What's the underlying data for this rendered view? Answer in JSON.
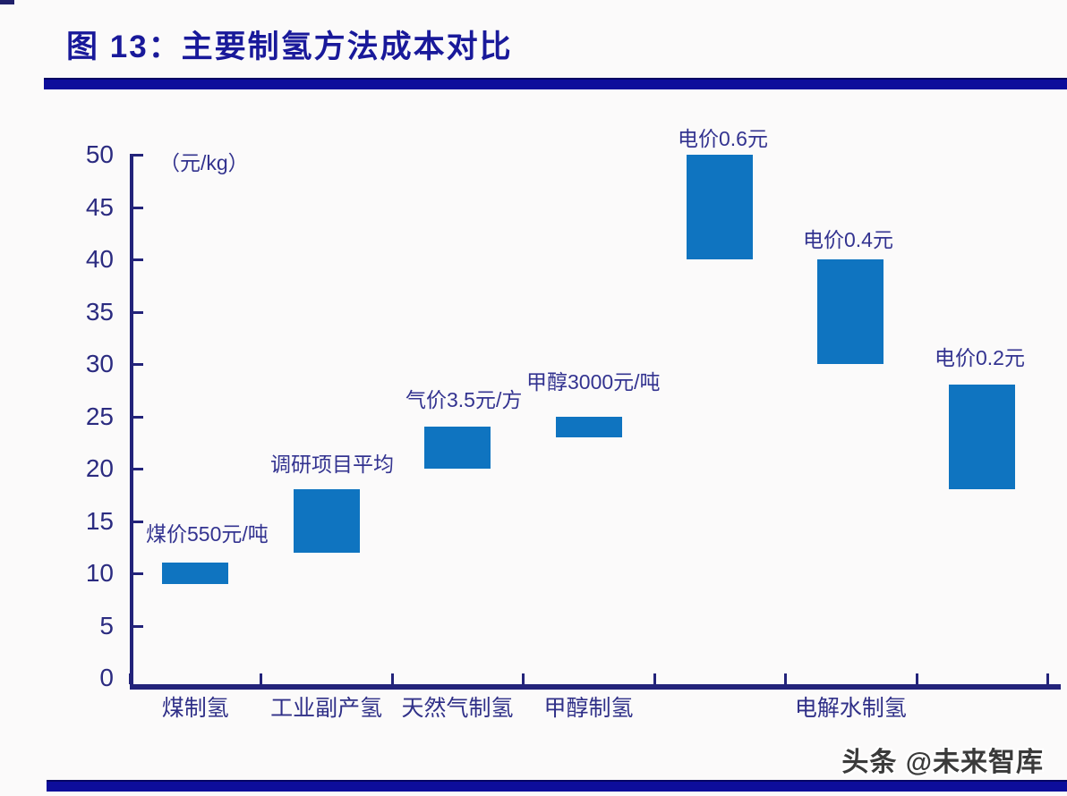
{
  "header": {
    "title": "图 13：主要制氢方法成本对比"
  },
  "footer": {
    "watermark": "头条 @未来智库"
  },
  "chart_data": {
    "type": "bar",
    "subtype": "floating-range-column",
    "title": "图 13：主要制氢方法成本对比",
    "unit_label": "（元/kg）",
    "ylabel": "元/kg",
    "ylim": [
      0,
      50
    ],
    "ytick_step": 5,
    "yticks": [
      0,
      5,
      10,
      15,
      20,
      25,
      30,
      35,
      40,
      45,
      50
    ],
    "grid": "off",
    "legend": "none",
    "bar_color": "#0f74c0",
    "axis_color": "#23237a",
    "categories": [
      "煤制氢",
      "工业副产氢",
      "天然气制氢",
      "甲醇制氢",
      "电解水制氢"
    ],
    "series": [
      {
        "category": "煤制氢",
        "slot": 0,
        "low": 9,
        "high": 11,
        "annotation": "煤价550元/吨"
      },
      {
        "category": "工业副产氢",
        "slot": 1,
        "low": 12,
        "high": 18,
        "annotation": "调研项目平均"
      },
      {
        "category": "天然气制氢",
        "slot": 2,
        "low": 20,
        "high": 24,
        "annotation": "气价3.5元/方"
      },
      {
        "category": "甲醇制氢",
        "slot": 3,
        "low": 23,
        "high": 25,
        "annotation": "甲醇3000元/吨"
      },
      {
        "category": "电解水制氢",
        "slot": 4,
        "low": 40,
        "high": 50,
        "annotation": "电价0.6元"
      },
      {
        "category": "电解水制氢",
        "slot": 5,
        "low": 30,
        "high": 40,
        "annotation": "电价0.4元"
      },
      {
        "category": "电解水制氢",
        "slot": 6,
        "low": 18,
        "high": 28,
        "annotation": "电价0.2元"
      }
    ],
    "category_labels": [
      {
        "label": "煤制氢",
        "slot": 0
      },
      {
        "label": "工业副产氢",
        "slot": 1
      },
      {
        "label": "天然气制氢",
        "slot": 2
      },
      {
        "label": "甲醇制氢",
        "slot": 3
      },
      {
        "label": "电解水制氢",
        "slot": 5
      }
    ]
  }
}
